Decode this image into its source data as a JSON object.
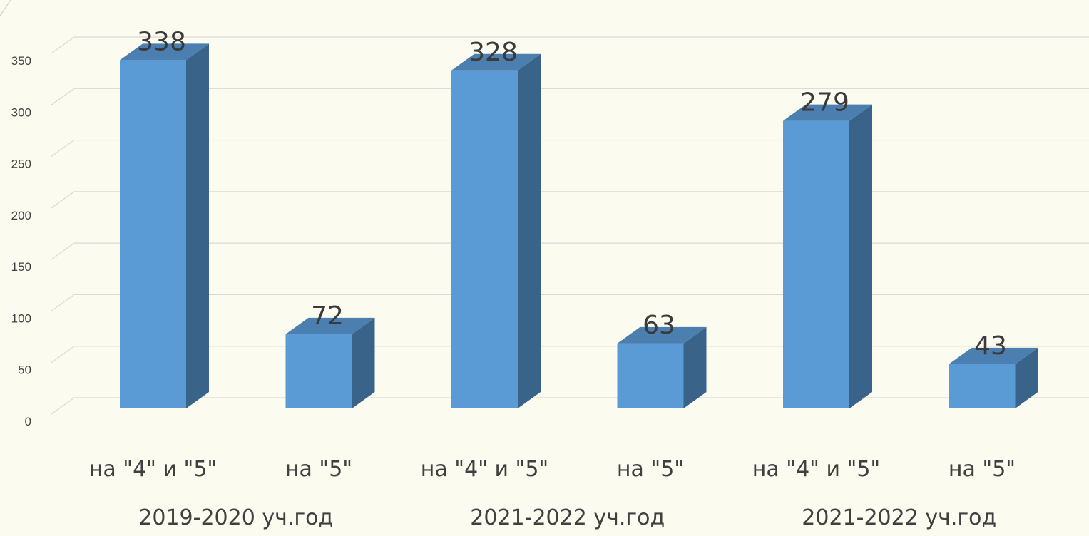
{
  "chart_data": {
    "type": "bar",
    "title": "",
    "xlabel": "",
    "ylabel": "",
    "categories": [
      "на \"4\" и \"5\"",
      "на \"5\"",
      "на \"4\" и \"5\"",
      "на \"5\"",
      "на \"4\" и \"5\"",
      "на \"5\""
    ],
    "groups": [
      "2019-2020 уч.год",
      "2021-2022 уч.год",
      "2021-2022 уч.год"
    ],
    "values": [
      338,
      72,
      328,
      63,
      279,
      43
    ],
    "ylim": [
      0,
      350
    ],
    "yticks": [
      "0",
      "50",
      "100",
      "150",
      "200",
      "250",
      "300",
      "350"
    ],
    "grid": true,
    "legend": "none",
    "colors": {
      "front": "#5b9bd5",
      "side": "#3a6389",
      "top": "#4b7fb0",
      "grid": "#d9d9d9",
      "background": "#fbfbef"
    }
  }
}
